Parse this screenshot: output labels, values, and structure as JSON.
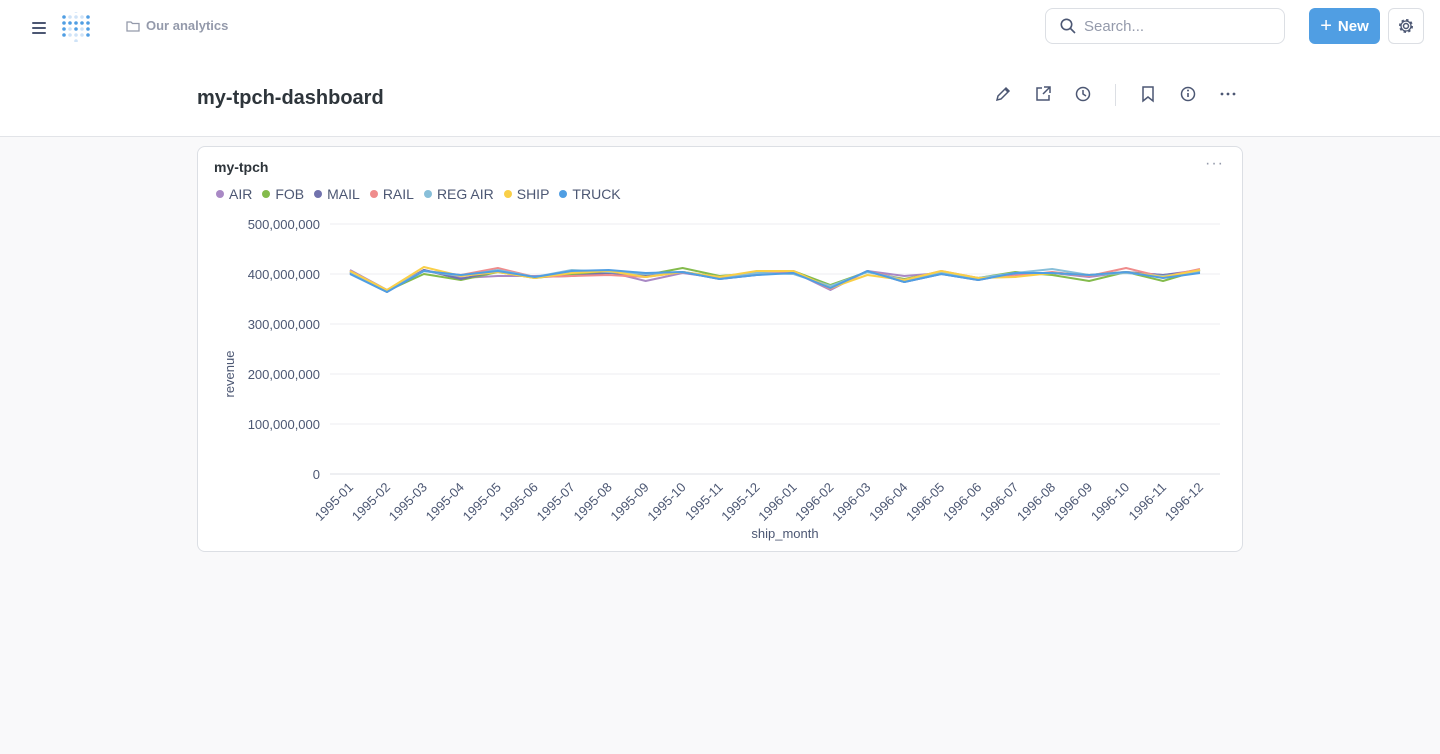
{
  "nav": {
    "breadcrumb": "Our analytics",
    "search_placeholder": "Search...",
    "new_label": "New"
  },
  "dashboard": {
    "title": "my-tpch-dashboard"
  },
  "card": {
    "title": "my-tpch"
  },
  "chart_data": {
    "type": "line",
    "xlabel": "ship_month",
    "ylabel": "revenue",
    "ylim": [
      0,
      500000000
    ],
    "yticks": [
      "0",
      "100,000,000",
      "200,000,000",
      "300,000,000",
      "400,000,000",
      "500,000,000"
    ],
    "legend": "top-left",
    "grid": true,
    "categories": [
      "1995-01",
      "1995-02",
      "1995-03",
      "1995-04",
      "1995-05",
      "1995-06",
      "1995-07",
      "1995-08",
      "1995-09",
      "1995-10",
      "1995-11",
      "1995-12",
      "1996-01",
      "1996-02",
      "1996-03",
      "1996-04",
      "1996-05",
      "1996-06",
      "1996-07",
      "1996-08",
      "1996-09",
      "1996-10",
      "1996-11",
      "1996-12"
    ],
    "series": [
      {
        "name": "AIR",
        "color": "#a989c5",
        "values": [
          408,
          368,
          408,
          392,
          396,
          396,
          398,
          404,
          386,
          402,
          392,
          400,
          404,
          368,
          406,
          396,
          402,
          390,
          400,
          402,
          394,
          404,
          398,
          408
        ]
      },
      {
        "name": "FOB",
        "color": "#84bb4c",
        "values": [
          404,
          366,
          400,
          388,
          404,
          392,
          400,
          404,
          398,
          412,
          396,
          402,
          406,
          378,
          404,
          390,
          404,
          392,
          404,
          398,
          386,
          404,
          386,
          408
        ]
      },
      {
        "name": "MAIL",
        "color": "#7172ad",
        "values": [
          402,
          364,
          408,
          390,
          406,
          394,
          396,
          402,
          398,
          404,
          390,
          398,
          404,
          372,
          406,
          384,
          400,
          388,
          402,
          402,
          398,
          404,
          398,
          406
        ]
      },
      {
        "name": "RAIL",
        "color": "#ef8c8c",
        "values": [
          406,
          368,
          406,
          398,
          412,
          394,
          396,
          398,
          394,
          404,
          394,
          400,
          406,
          370,
          406,
          388,
          406,
          392,
          396,
          404,
          396,
          412,
          394,
          410
        ]
      },
      {
        "name": "REG AIR",
        "color": "#88bfd9",
        "values": [
          404,
          368,
          406,
          396,
          408,
          394,
          408,
          404,
          400,
          404,
          394,
          402,
          400,
          376,
          404,
          388,
          402,
          392,
          402,
          410,
          398,
          402,
          396,
          404
        ]
      },
      {
        "name": "SHIP",
        "color": "#f9cf48",
        "values": [
          406,
          368,
          414,
          396,
          404,
          392,
          402,
          406,
          394,
          404,
          394,
          406,
          406,
          372,
          398,
          388,
          406,
          392,
          394,
          402,
          398,
          404,
          394,
          408
        ]
      },
      {
        "name": "TRUCK",
        "color": "#509ee3",
        "values": [
          400,
          364,
          406,
          398,
          406,
          394,
          406,
          408,
          402,
          404,
          390,
          398,
          402,
          372,
          406,
          384,
          400,
          388,
          402,
          402,
          398,
          404,
          392,
          402
        ]
      }
    ]
  }
}
